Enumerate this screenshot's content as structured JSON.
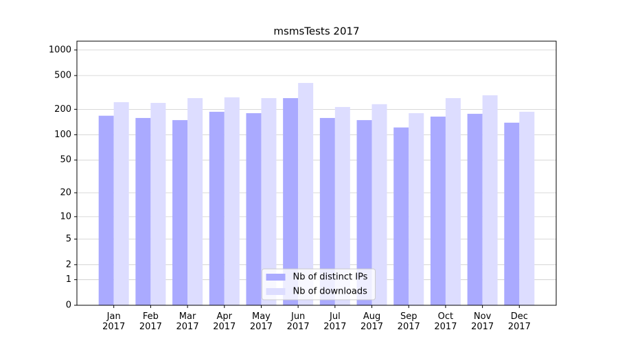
{
  "chart_data": {
    "type": "bar",
    "title": "msmsTests 2017",
    "categories": [
      "Jan\n2017",
      "Feb\n2017",
      "Mar\n2017",
      "Apr\n2017",
      "May\n2017",
      "Jun\n2017",
      "Jul\n2017",
      "Aug\n2017",
      "Sep\n2017",
      "Oct\n2017",
      "Nov\n2017",
      "Dec\n2017"
    ],
    "series": [
      {
        "name": "Nb of distinct IPs",
        "color": "#aaaaff",
        "values": [
          168,
          158,
          149,
          187,
          180,
          271,
          158,
          149,
          122,
          164,
          177,
          139
        ]
      },
      {
        "name": "Nb of downloads",
        "color": "#ddddff",
        "values": [
          243,
          238,
          271,
          277,
          271,
          409,
          213,
          230,
          180,
          271,
          293,
          187
        ]
      }
    ],
    "yscale": "log1p",
    "ylim": [
      0,
      1270
    ],
    "yticks": [
      0,
      1,
      2,
      5,
      10,
      20,
      50,
      100,
      200,
      500,
      1000
    ],
    "grid": true,
    "legend": "lower center"
  }
}
